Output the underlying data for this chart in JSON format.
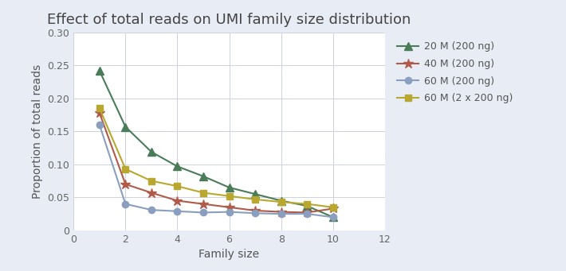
{
  "title": "Effect of total reads on UMI family size distribution",
  "xlabel": "Family size",
  "ylabel": "Proportion of total reads",
  "xlim": [
    0,
    12
  ],
  "ylim": [
    0,
    0.3
  ],
  "yticks": [
    0,
    0.05,
    0.1,
    0.15,
    0.2,
    0.25,
    0.3
  ],
  "ytick_labels": [
    "0",
    "0.05",
    "0.10",
    "0.15",
    "0.20",
    "0.25",
    "0.30"
  ],
  "xticks": [
    0,
    2,
    4,
    6,
    8,
    10,
    12
  ],
  "series": [
    {
      "label": "20 M (200 ng)",
      "x": [
        1,
        2,
        3,
        4,
        5,
        6,
        7,
        8,
        9,
        10
      ],
      "y": [
        0.242,
        0.157,
        0.119,
        0.097,
        0.082,
        0.065,
        0.055,
        0.045,
        0.037,
        0.02
      ],
      "color": "#4a7c59",
      "marker": "^",
      "markersize": 7,
      "linewidth": 1.5
    },
    {
      "label": "40 M (200 ng)",
      "x": [
        1,
        2,
        3,
        4,
        5,
        6,
        7,
        8,
        9,
        10
      ],
      "y": [
        0.178,
        0.07,
        0.057,
        0.045,
        0.04,
        0.035,
        0.03,
        0.028,
        0.027,
        0.033
      ],
      "color": "#b05a4a",
      "marker": "*",
      "markersize": 9,
      "linewidth": 1.5
    },
    {
      "label": "60 M (200 ng)",
      "x": [
        1,
        2,
        3,
        4,
        5,
        6,
        7,
        8,
        9,
        10
      ],
      "y": [
        0.16,
        0.04,
        0.031,
        0.029,
        0.027,
        0.028,
        0.026,
        0.025,
        0.025,
        0.02
      ],
      "color": "#8a9fbf",
      "marker": "o",
      "markersize": 6,
      "linewidth": 1.5
    },
    {
      "label": "60 M (2 x 200 ng)",
      "x": [
        1,
        2,
        3,
        4,
        5,
        6,
        7,
        8,
        9,
        10
      ],
      "y": [
        0.185,
        0.093,
        0.075,
        0.067,
        0.057,
        0.052,
        0.047,
        0.043,
        0.04,
        0.035
      ],
      "color": "#b8a830",
      "marker": "s",
      "markersize": 6,
      "linewidth": 1.5
    }
  ],
  "fig_background_color": "#e8ecf4",
  "plot_background": "#ffffff",
  "grid_color": "#cdd2df",
  "title_fontsize": 13,
  "axis_fontsize": 10,
  "tick_fontsize": 9,
  "legend_fontsize": 9
}
